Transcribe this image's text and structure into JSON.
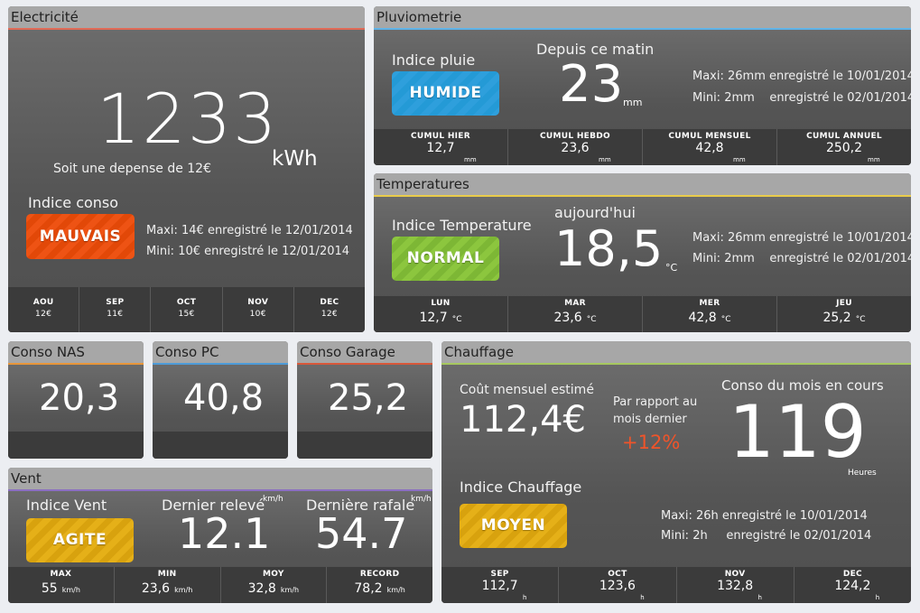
{
  "electricite": {
    "title": "Electricité",
    "value": "1233",
    "unit": "kWh",
    "depense": "Soit une depense de 12€",
    "indice_label": "Indice conso",
    "badge": "MAUVAIS",
    "maxi": "Maxi: 14€  enregistré le 12/01/2014",
    "mini": "Mini: 10€  enregistré le 12/01/2014",
    "months": [
      {
        "label": "AOU",
        "value": "12€"
      },
      {
        "label": "SEP",
        "value": "11€"
      },
      {
        "label": "OCT",
        "value": "15€"
      },
      {
        "label": "NOV",
        "value": "10€"
      },
      {
        "label": "DEC",
        "value": "12€"
      }
    ]
  },
  "pluvio": {
    "title": "Pluviometrie",
    "indice_label": "Indice pluie",
    "badge": "HUMIDE",
    "since_label": "Depuis ce matin",
    "value": "23",
    "unit": "mm",
    "maxi": "Maxi: 26mm  enregistré le 10/01/2014",
    "mini": "Mini: 2mm    enregistré le 02/01/2014",
    "cumuls": [
      {
        "label": "CUMUL HIER",
        "value": "12,7",
        "unit": "mm"
      },
      {
        "label": "CUMUL HEBDO",
        "value": "23,6",
        "unit": "mm"
      },
      {
        "label": "CUMUL MENSUEL",
        "value": "42,8",
        "unit": "mm"
      },
      {
        "label": "CUMUL ANNUEL",
        "value": "250,2",
        "unit": "mm"
      }
    ]
  },
  "temperatures": {
    "title": "Temperatures",
    "indice_label": "Indice Temperature",
    "badge": "NORMAL",
    "today_label": "aujourd'hui",
    "value": "18,5",
    "unit": "°C",
    "maxi": "Maxi: 26mm  enregistré le 10/01/2014",
    "mini": "Mini: 2mm    enregistré le 02/01/2014",
    "days": [
      {
        "label": "LUN",
        "value": "12,7",
        "unit": "°C"
      },
      {
        "label": "MAR",
        "value": "23,6",
        "unit": "°C"
      },
      {
        "label": "MER",
        "value": "42,8",
        "unit": "°C"
      },
      {
        "label": "JEU",
        "value": "25,2",
        "unit": "°C"
      }
    ]
  },
  "conso_nas": {
    "title": "Conso NAS",
    "value": "20,3"
  },
  "conso_pc": {
    "title": "Conso PC",
    "value": "40,8"
  },
  "conso_garage": {
    "title": "Conso Garage",
    "value": "25,2"
  },
  "chauffage": {
    "title": "Chauffage",
    "cout_label": "Coût mensuel estimé",
    "cout_value": "112,4€",
    "rapport_label_1": "Par rapport au",
    "rapport_label_2": "mois dernier",
    "rapport_value": "+12%",
    "conso_label": "Conso du mois en cours",
    "conso_value": "119",
    "conso_unit": "Heures",
    "indice_label": "Indice Chauffage",
    "badge": "MOYEN",
    "maxi": "Maxi: 26h enregistré le 10/01/2014",
    "mini": "Mini: 2h     enregistré le 02/01/2014",
    "months": [
      {
        "label": "SEP",
        "value": "112,7",
        "unit": "h"
      },
      {
        "label": "OCT",
        "value": "123,6",
        "unit": "h"
      },
      {
        "label": "NOV",
        "value": "132,8",
        "unit": "h"
      },
      {
        "label": "DEC",
        "value": "124,2",
        "unit": "h"
      }
    ]
  },
  "vent": {
    "title": "Vent",
    "indice_label": "Indice Vent",
    "badge": "AGITE",
    "releve_label": "Dernier relevé",
    "releve_value": "12.1",
    "rafale_label": "Dernière rafale",
    "rafale_value": "54.7",
    "unit": "km/h",
    "stats": [
      {
        "label": "MAX",
        "value": "55",
        "unit": "km/h"
      },
      {
        "label": "MIN",
        "value": "23,6",
        "unit": "km/h"
      },
      {
        "label": "MOY",
        "value": "32,8",
        "unit": "km/h"
      },
      {
        "label": "RECORD",
        "value": "78,2",
        "unit": "km/h"
      }
    ]
  },
  "colors": {
    "humide": "#2e9fdc",
    "mauvais": "#ee5314",
    "normal": "#8cc63e",
    "moyen": "#e5b018",
    "agite": "#e5b018",
    "positive": "#f0542a"
  }
}
